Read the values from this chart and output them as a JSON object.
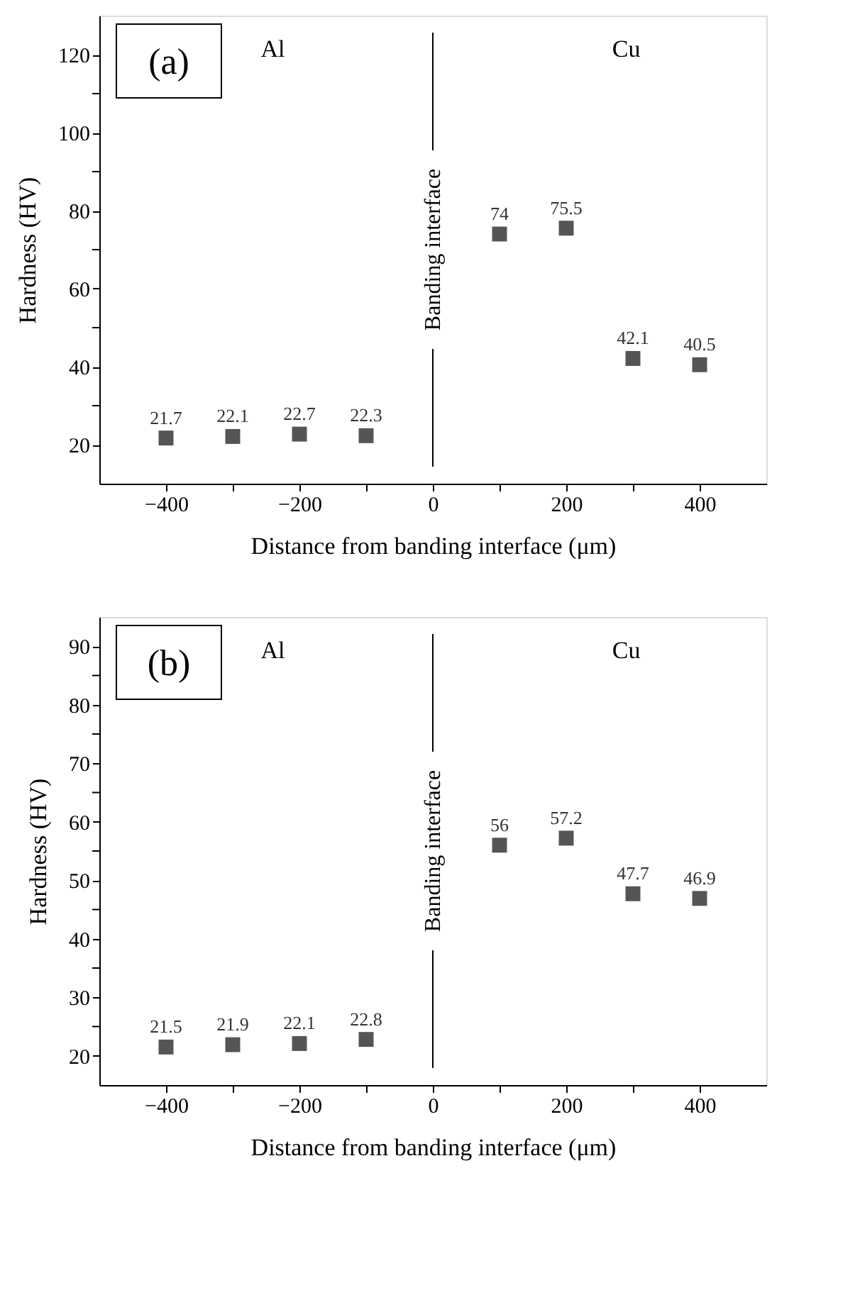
{
  "chart_data": [
    {
      "type": "scatter",
      "xlabel": "Distance from banding interface (μm)",
      "ylabel": "Hardness (HV)",
      "annotations": [
        "(a)",
        "Al",
        "Cu"
      ],
      "x": [
        -400,
        -300,
        -200,
        -100,
        100,
        200,
        300,
        400
      ],
      "series": [
        {
          "color": "#555555",
          "values": [
            21.7,
            22.1,
            22.7,
            22.3,
            74,
            75.5,
            42.1,
            40.5
          ]
        }
      ],
      "data_labels": true,
      "marker": "square",
      "grid": false,
      "xlim": [
        -500,
        500
      ],
      "xticks": [
        -400,
        {
          "value": -300,
          "label": null
        },
        -200,
        {
          "value": -100,
          "label": null
        },
        0,
        {
          "value": 100,
          "label": null
        },
        200,
        {
          "value": 300,
          "label": null
        },
        400
      ],
      "legend": false,
      "ylim": [
        10,
        130
      ],
      "yticks": [
        20,
        {
          "value": 30,
          "label": null
        },
        40,
        {
          "value": 50,
          "label": null
        },
        60,
        {
          "value": 70,
          "label": null
        },
        80,
        {
          "value": 90,
          "label": null
        },
        100,
        {
          "value": 110,
          "label": null
        },
        120
      ],
      "ref_lines": [
        {
          "axis": "x",
          "value": 0,
          "label": "Banding interface",
          "color": "#000000"
        }
      ]
    },
    {
      "type": "scatter",
      "xlabel": "Distance from banding interface (μm)",
      "ylabel": "Hardness (HV)",
      "annotations": [
        "(b)",
        "Al",
        "Cu"
      ],
      "x": [
        -400,
        -300,
        -200,
        -100,
        100,
        200,
        300,
        400
      ],
      "series": [
        {
          "color": "#555555",
          "values": [
            21.5,
            21.9,
            22.1,
            22.8,
            56,
            57.2,
            47.7,
            46.9
          ]
        }
      ],
      "data_labels": true,
      "marker": "square",
      "grid": false,
      "xlim": [
        -500,
        500
      ],
      "xticks": [
        -400,
        {
          "value": -300,
          "label": null
        },
        -200,
        {
          "value": -100,
          "label": null
        },
        0,
        {
          "value": 100,
          "label": null
        },
        200,
        {
          "value": 300,
          "label": null
        },
        400
      ],
      "legend": false,
      "ylim": [
        15,
        95
      ],
      "yticks": [
        20,
        {
          "value": 25,
          "label": null
        },
        30,
        {
          "value": 35,
          "label": null
        },
        40,
        {
          "value": 45,
          "label": null
        },
        50,
        {
          "value": 55,
          "label": null
        },
        60,
        {
          "value": 65,
          "label": null
        },
        70,
        {
          "value": 75,
          "label": null
        },
        80,
        {
          "value": 85,
          "label": null
        },
        90
      ],
      "ref_lines": [
        {
          "axis": "x",
          "value": 0,
          "label": "Banding interface",
          "color": "#000000"
        }
      ]
    }
  ]
}
